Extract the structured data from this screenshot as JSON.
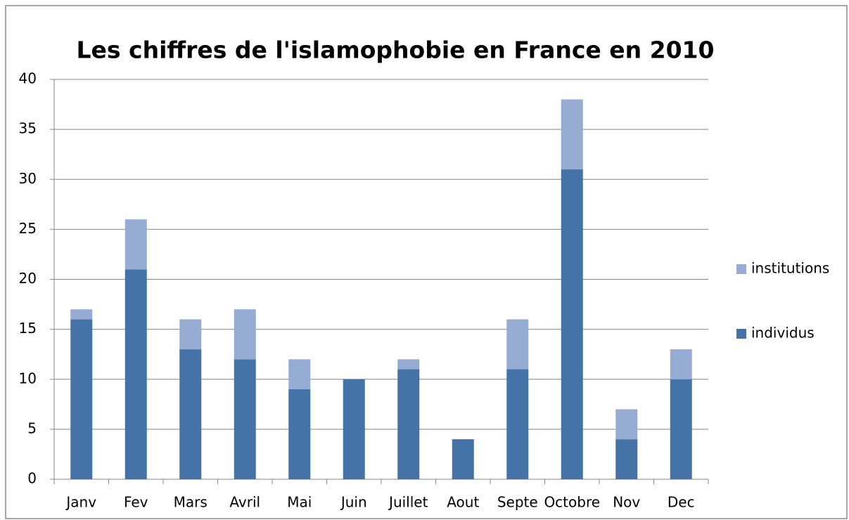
{
  "chart_data": {
    "type": "stacked_bar",
    "title": "Les chiffres de l'islamophobie en France en 2010",
    "categories": [
      "Janv",
      "Fev",
      "Mars",
      "Avril",
      "Mai",
      "Juin",
      "Juillet",
      "Aout",
      "Septe",
      "Octobre",
      "Nov",
      "Dec"
    ],
    "series": [
      {
        "name": "individus",
        "color": "#4573a7",
        "values": [
          16,
          21,
          13,
          12,
          9,
          10,
          11,
          4,
          11,
          31,
          4,
          10
        ]
      },
      {
        "name": "institutions",
        "color": "#97acd2",
        "values": [
          1,
          5,
          3,
          5,
          3,
          0,
          1,
          0,
          5,
          7,
          3,
          3
        ]
      }
    ],
    "ylim": [
      0,
      40
    ],
    "yticks": [
      0,
      5,
      10,
      15,
      20,
      25,
      30,
      35,
      40
    ],
    "grid": true,
    "legend": "right"
  }
}
